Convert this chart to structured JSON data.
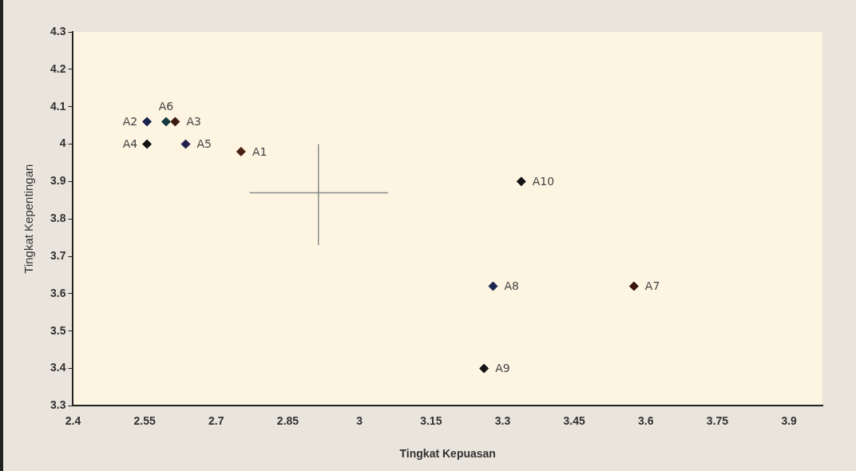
{
  "chart_data": {
    "type": "scatter",
    "xlabel": "Tingkat Kepuasan",
    "ylabel": "Tingkat Kepentingan",
    "xlim": [
      2.4,
      3.97
    ],
    "xticks": [
      2.4,
      2.55,
      2.7,
      2.85,
      3,
      3.15,
      3.3,
      3.45,
      3.6,
      3.75,
      3.9
    ],
    "ylim": [
      3.3,
      4.3
    ],
    "yticks": [
      3.3,
      3.4,
      3.5,
      3.6,
      3.7,
      3.8,
      3.9,
      4,
      4.1,
      4.2,
      4.3
    ],
    "grid": false,
    "legend": false,
    "marker": "diamond",
    "series": [
      {
        "x": [
          2.752,
          2.555,
          2.614,
          2.555,
          2.636,
          2.595,
          3.575,
          3.28,
          3.261,
          3.339
        ],
        "values": [
          3.98,
          4.06,
          4.06,
          4.0,
          4.0,
          4.06,
          3.62,
          3.62,
          3.4,
          3.9
        ],
        "colors": [
          "#4a2010",
          "#1a2450",
          "#3a1a10",
          "#151515",
          "#20204a",
          "#153a40",
          "#3a1510",
          "#1a2450",
          "#151515",
          "#151515"
        ]
      },
      {
        "x": [
          2.914
        ],
        "values": [
          3.87
        ],
        "errors": [
          [
            3.73,
            4.0
          ]
        ],
        "xerrors": [
          [
            2.77,
            3.06
          ]
        ],
        "color": "#8a8a8a",
        "marker": "cross"
      }
    ],
    "annotations": [
      {
        "text": "A1",
        "x": 2.752,
        "y": 3.98
      },
      {
        "text": "A2",
        "x": 2.555,
        "y": 4.06
      },
      {
        "text": "A3",
        "x": 2.614,
        "y": 4.06
      },
      {
        "text": "A4",
        "x": 2.555,
        "y": 4.0
      },
      {
        "text": "A5",
        "x": 2.636,
        "y": 4.0
      },
      {
        "text": "A6",
        "x": 2.595,
        "y": 4.06
      },
      {
        "text": "A7",
        "x": 3.575,
        "y": 3.62
      },
      {
        "text": "A8",
        "x": 3.28,
        "y": 3.62
      },
      {
        "text": "A9",
        "x": 3.261,
        "y": 3.4
      },
      {
        "text": "A10",
        "x": 3.339,
        "y": 3.9
      }
    ]
  }
}
